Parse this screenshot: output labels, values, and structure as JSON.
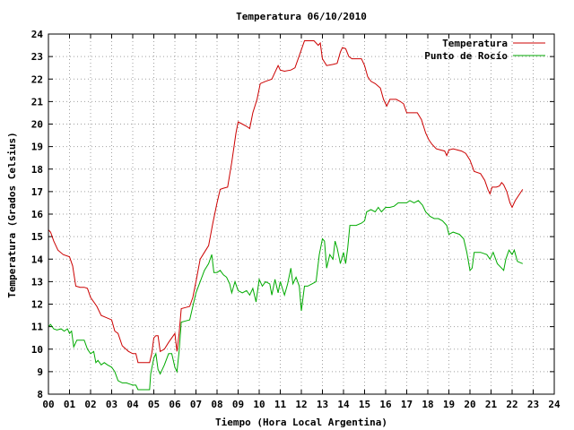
{
  "chart_data": {
    "type": "line",
    "title": "Temperatura 06/10/2010",
    "xlabel": "Tiempo (Hora Local Argentina)",
    "ylabel": "Temperatura (Grados Celsius)",
    "xlim": [
      0,
      24
    ],
    "ylim": [
      8,
      24
    ],
    "x_ticks": [
      0,
      1,
      2,
      3,
      4,
      5,
      6,
      7,
      8,
      9,
      10,
      11,
      12,
      13,
      14,
      15,
      16,
      17,
      18,
      19,
      20,
      21,
      22,
      23,
      24
    ],
    "x_tick_labels": [
      "00",
      "01",
      "02",
      "03",
      "04",
      "05",
      "06",
      "07",
      "08",
      "09",
      "10",
      "11",
      "12",
      "13",
      "14",
      "15",
      "16",
      "17",
      "18",
      "19",
      "20",
      "21",
      "22",
      "23",
      "24"
    ],
    "y_ticks": [
      8,
      9,
      10,
      11,
      12,
      13,
      14,
      15,
      16,
      17,
      18,
      19,
      20,
      21,
      22,
      23,
      24
    ],
    "grid": true,
    "legend_position": "top-right",
    "series": [
      {
        "name": "Temperatura",
        "color": "#cc0000",
        "points": [
          [
            0.0,
            15.3
          ],
          [
            0.1,
            15.2
          ],
          [
            0.25,
            14.8
          ],
          [
            0.45,
            14.4
          ],
          [
            0.7,
            14.2
          ],
          [
            1.0,
            14.1
          ],
          [
            1.15,
            13.7
          ],
          [
            1.3,
            12.8
          ],
          [
            1.5,
            12.75
          ],
          [
            1.7,
            12.75
          ],
          [
            1.85,
            12.7
          ],
          [
            2.0,
            12.3
          ],
          [
            2.3,
            11.9
          ],
          [
            2.5,
            11.5
          ],
          [
            2.75,
            11.4
          ],
          [
            3.0,
            11.3
          ],
          [
            3.15,
            10.8
          ],
          [
            3.3,
            10.7
          ],
          [
            3.5,
            10.15
          ],
          [
            3.8,
            9.9
          ],
          [
            4.0,
            9.8
          ],
          [
            4.15,
            9.8
          ],
          [
            4.25,
            9.4
          ],
          [
            4.5,
            9.4
          ],
          [
            4.8,
            9.4
          ],
          [
            4.9,
            9.8
          ],
          [
            5.0,
            10.5
          ],
          [
            5.1,
            10.6
          ],
          [
            5.2,
            10.6
          ],
          [
            5.3,
            9.9
          ],
          [
            5.5,
            10.0
          ],
          [
            5.7,
            10.3
          ],
          [
            5.85,
            10.5
          ],
          [
            6.0,
            10.7
          ],
          [
            6.1,
            9.9
          ],
          [
            6.2,
            10.7
          ],
          [
            6.3,
            11.8
          ],
          [
            6.5,
            11.85
          ],
          [
            6.7,
            11.9
          ],
          [
            6.85,
            12.3
          ],
          [
            7.0,
            13.0
          ],
          [
            7.2,
            14.0
          ],
          [
            7.4,
            14.3
          ],
          [
            7.6,
            14.6
          ],
          [
            7.8,
            15.6
          ],
          [
            8.0,
            16.5
          ],
          [
            8.15,
            17.1
          ],
          [
            8.3,
            17.15
          ],
          [
            8.5,
            17.2
          ],
          [
            8.7,
            18.3
          ],
          [
            8.9,
            19.6
          ],
          [
            9.0,
            20.1
          ],
          [
            9.2,
            20.0
          ],
          [
            9.4,
            19.9
          ],
          [
            9.55,
            19.8
          ],
          [
            9.7,
            20.5
          ],
          [
            9.9,
            21.1
          ],
          [
            10.05,
            21.8
          ],
          [
            10.3,
            21.9
          ],
          [
            10.6,
            22.0
          ],
          [
            10.75,
            22.3
          ],
          [
            10.9,
            22.6
          ],
          [
            11.0,
            22.4
          ],
          [
            11.2,
            22.35
          ],
          [
            11.5,
            22.4
          ],
          [
            11.7,
            22.5
          ],
          [
            12.0,
            23.3
          ],
          [
            12.15,
            23.7
          ],
          [
            12.4,
            23.7
          ],
          [
            12.6,
            23.7
          ],
          [
            12.8,
            23.5
          ],
          [
            12.9,
            23.6
          ],
          [
            13.0,
            22.9
          ],
          [
            13.2,
            22.6
          ],
          [
            13.5,
            22.65
          ],
          [
            13.7,
            22.7
          ],
          [
            13.85,
            23.2
          ],
          [
            13.95,
            23.4
          ],
          [
            14.1,
            23.35
          ],
          [
            14.25,
            23.0
          ],
          [
            14.4,
            22.9
          ],
          [
            14.6,
            22.9
          ],
          [
            14.85,
            22.9
          ],
          [
            15.0,
            22.6
          ],
          [
            15.15,
            22.1
          ],
          [
            15.3,
            21.9
          ],
          [
            15.5,
            21.8
          ],
          [
            15.75,
            21.6
          ],
          [
            15.9,
            21.1
          ],
          [
            16.05,
            20.8
          ],
          [
            16.2,
            21.1
          ],
          [
            16.5,
            21.1
          ],
          [
            16.7,
            21.0
          ],
          [
            16.85,
            20.9
          ],
          [
            17.0,
            20.5
          ],
          [
            17.2,
            20.5
          ],
          [
            17.5,
            20.5
          ],
          [
            17.7,
            20.2
          ],
          [
            17.9,
            19.6
          ],
          [
            18.05,
            19.3
          ],
          [
            18.2,
            19.1
          ],
          [
            18.4,
            18.9
          ],
          [
            18.6,
            18.85
          ],
          [
            18.8,
            18.8
          ],
          [
            18.9,
            18.6
          ],
          [
            19.0,
            18.85
          ],
          [
            19.2,
            18.9
          ],
          [
            19.4,
            18.85
          ],
          [
            19.6,
            18.8
          ],
          [
            19.8,
            18.7
          ],
          [
            20.0,
            18.4
          ],
          [
            20.2,
            17.9
          ],
          [
            20.5,
            17.8
          ],
          [
            20.7,
            17.5
          ],
          [
            20.85,
            17.1
          ],
          [
            20.95,
            16.9
          ],
          [
            21.05,
            17.2
          ],
          [
            21.25,
            17.2
          ],
          [
            21.4,
            17.25
          ],
          [
            21.5,
            17.4
          ],
          [
            21.6,
            17.3
          ],
          [
            21.75,
            17.0
          ],
          [
            21.9,
            16.5
          ],
          [
            22.0,
            16.3
          ],
          [
            22.15,
            16.6
          ],
          [
            22.5,
            17.1
          ]
        ]
      },
      {
        "name": "Punto de Rocío",
        "color": "#00aa00",
        "points": [
          [
            0.0,
            11.0
          ],
          [
            0.1,
            11.1
          ],
          [
            0.25,
            10.9
          ],
          [
            0.4,
            10.85
          ],
          [
            0.6,
            10.9
          ],
          [
            0.75,
            10.8
          ],
          [
            0.9,
            10.9
          ],
          [
            1.0,
            10.7
          ],
          [
            1.1,
            10.8
          ],
          [
            1.2,
            10.1
          ],
          [
            1.35,
            10.4
          ],
          [
            1.5,
            10.4
          ],
          [
            1.7,
            10.4
          ],
          [
            1.85,
            10.0
          ],
          [
            2.0,
            9.8
          ],
          [
            2.15,
            9.9
          ],
          [
            2.25,
            9.4
          ],
          [
            2.35,
            9.5
          ],
          [
            2.5,
            9.3
          ],
          [
            2.65,
            9.4
          ],
          [
            2.8,
            9.3
          ],
          [
            3.0,
            9.2
          ],
          [
            3.15,
            9.0
          ],
          [
            3.3,
            8.6
          ],
          [
            3.5,
            8.5
          ],
          [
            3.7,
            8.5
          ],
          [
            3.85,
            8.45
          ],
          [
            4.0,
            8.4
          ],
          [
            4.15,
            8.4
          ],
          [
            4.25,
            8.2
          ],
          [
            4.5,
            8.2
          ],
          [
            4.8,
            8.2
          ],
          [
            4.85,
            8.9
          ],
          [
            5.0,
            9.6
          ],
          [
            5.1,
            9.8
          ],
          [
            5.2,
            9.1
          ],
          [
            5.3,
            8.9
          ],
          [
            5.5,
            9.3
          ],
          [
            5.7,
            9.8
          ],
          [
            5.85,
            9.8
          ],
          [
            6.0,
            9.2
          ],
          [
            6.1,
            9.0
          ],
          [
            6.2,
            9.9
          ],
          [
            6.3,
            11.2
          ],
          [
            6.5,
            11.25
          ],
          [
            6.7,
            11.3
          ],
          [
            6.85,
            11.9
          ],
          [
            7.0,
            12.5
          ],
          [
            7.2,
            13.0
          ],
          [
            7.4,
            13.5
          ],
          [
            7.6,
            13.8
          ],
          [
            7.75,
            14.2
          ],
          [
            7.85,
            13.4
          ],
          [
            8.0,
            13.4
          ],
          [
            8.15,
            13.5
          ],
          [
            8.3,
            13.3
          ],
          [
            8.45,
            13.2
          ],
          [
            8.6,
            12.9
          ],
          [
            8.7,
            12.5
          ],
          [
            8.85,
            13.0
          ],
          [
            9.0,
            12.6
          ],
          [
            9.2,
            12.5
          ],
          [
            9.4,
            12.6
          ],
          [
            9.55,
            12.4
          ],
          [
            9.7,
            12.7
          ],
          [
            9.85,
            12.1
          ],
          [
            10.0,
            13.1
          ],
          [
            10.15,
            12.8
          ],
          [
            10.3,
            13.0
          ],
          [
            10.5,
            12.9
          ],
          [
            10.6,
            12.4
          ],
          [
            10.75,
            13.1
          ],
          [
            10.9,
            12.5
          ],
          [
            11.0,
            13.0
          ],
          [
            11.2,
            12.4
          ],
          [
            11.35,
            12.9
          ],
          [
            11.5,
            13.6
          ],
          [
            11.6,
            12.9
          ],
          [
            11.75,
            13.2
          ],
          [
            11.9,
            12.8
          ],
          [
            12.0,
            11.7
          ],
          [
            12.15,
            12.8
          ],
          [
            12.3,
            12.8
          ],
          [
            12.5,
            12.9
          ],
          [
            12.7,
            13.0
          ],
          [
            12.85,
            14.2
          ],
          [
            13.0,
            14.9
          ],
          [
            13.1,
            14.8
          ],
          [
            13.2,
            13.6
          ],
          [
            13.35,
            14.2
          ],
          [
            13.5,
            14.0
          ],
          [
            13.6,
            14.8
          ],
          [
            13.7,
            14.5
          ],
          [
            13.85,
            13.8
          ],
          [
            14.0,
            14.3
          ],
          [
            14.1,
            13.8
          ],
          [
            14.2,
            14.5
          ],
          [
            14.3,
            15.5
          ],
          [
            14.6,
            15.5
          ],
          [
            14.85,
            15.6
          ],
          [
            15.0,
            15.7
          ],
          [
            15.1,
            16.1
          ],
          [
            15.3,
            16.2
          ],
          [
            15.5,
            16.1
          ],
          [
            15.65,
            16.3
          ],
          [
            15.8,
            16.1
          ],
          [
            16.0,
            16.3
          ],
          [
            16.2,
            16.3
          ],
          [
            16.4,
            16.35
          ],
          [
            16.6,
            16.5
          ],
          [
            16.8,
            16.5
          ],
          [
            17.0,
            16.5
          ],
          [
            17.15,
            16.6
          ],
          [
            17.35,
            16.5
          ],
          [
            17.55,
            16.6
          ],
          [
            17.75,
            16.4
          ],
          [
            17.9,
            16.1
          ],
          [
            18.1,
            15.9
          ],
          [
            18.3,
            15.8
          ],
          [
            18.5,
            15.8
          ],
          [
            18.7,
            15.7
          ],
          [
            18.9,
            15.5
          ],
          [
            19.0,
            15.1
          ],
          [
            19.2,
            15.2
          ],
          [
            19.5,
            15.1
          ],
          [
            19.7,
            14.9
          ],
          [
            19.85,
            14.3
          ],
          [
            20.0,
            13.5
          ],
          [
            20.1,
            13.6
          ],
          [
            20.2,
            14.3
          ],
          [
            20.5,
            14.3
          ],
          [
            20.8,
            14.2
          ],
          [
            20.95,
            14.0
          ],
          [
            21.1,
            14.3
          ],
          [
            21.3,
            13.8
          ],
          [
            21.5,
            13.6
          ],
          [
            21.6,
            13.5
          ],
          [
            21.7,
            14.0
          ],
          [
            21.85,
            14.4
          ],
          [
            22.0,
            14.2
          ],
          [
            22.1,
            14.4
          ],
          [
            22.25,
            13.9
          ],
          [
            22.5,
            13.8
          ]
        ]
      }
    ]
  }
}
